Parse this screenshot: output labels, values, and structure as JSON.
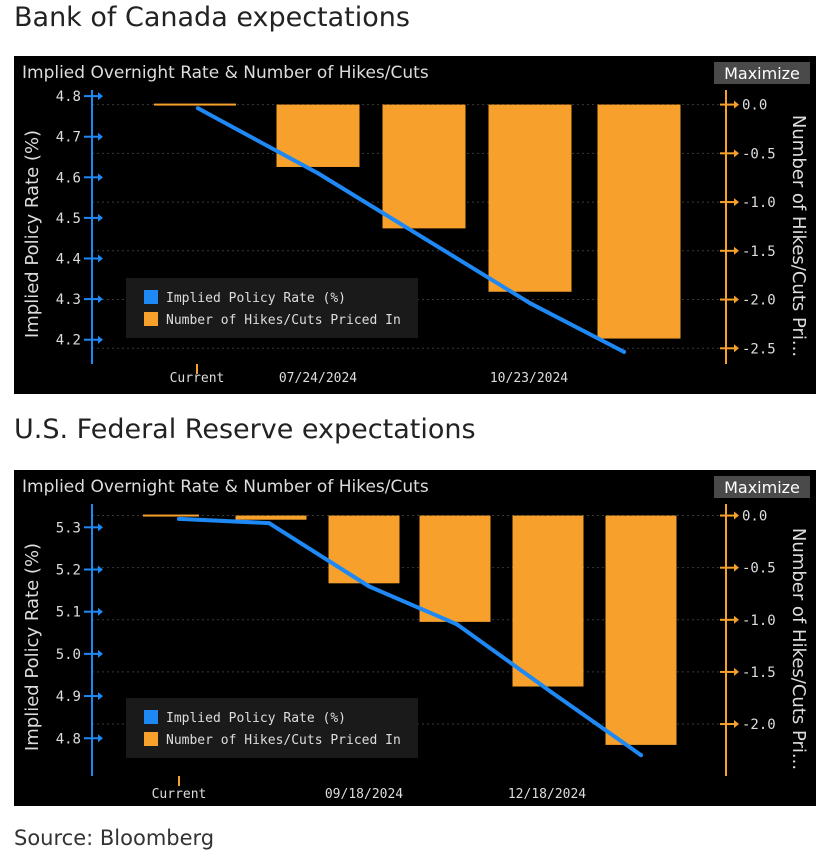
{
  "colors": {
    "rate_line": "#1E88F5",
    "bars": "#F7A02C",
    "panel_bg": "#000000",
    "axis_left": "#1E88F5",
    "axis_right": "#F7A02C",
    "text": "#DDDDDD",
    "button_bg": "#4A4A4A"
  },
  "source": "Source: Bloomberg",
  "chart_data": [
    {
      "section_title": "Bank of Canada expectations",
      "type": "bar+line",
      "title": "Implied Overnight Rate & Number of Hikes/Cuts",
      "maximize_label": "Maximize",
      "ylabel_left": "Implied Policy Rate (%)",
      "ylabel_right": "Number of Hikes/Cuts Pri...",
      "x_tick_labels": [
        "Current",
        "07/24/2024",
        "10/23/2024"
      ],
      "ylim_left": [
        4.15,
        4.82
      ],
      "yticks_left": [
        4.2,
        4.3,
        4.4,
        4.5,
        4.6,
        4.7,
        4.8
      ],
      "ylim_right": [
        -2.62,
        0.17
      ],
      "yticks_right": [
        0.0,
        -0.5,
        -1.0,
        -1.5,
        -2.0,
        -2.5
      ],
      "legend": {
        "placement": "bottom-left",
        "entries": [
          "Implied Policy Rate (%)",
          "Number of Hikes/Cuts Priced In"
        ]
      },
      "series": [
        {
          "name": "Implied Policy Rate (%)",
          "type": "line",
          "values": [
            4.77,
            4.61,
            4.45,
            4.29,
            4.17
          ]
        },
        {
          "name": "Number of Hikes/Cuts Priced In",
          "type": "bar",
          "values": [
            0.0,
            -0.64,
            -1.27,
            -1.92,
            -2.4
          ]
        }
      ]
    },
    {
      "section_title": "U.S. Federal Reserve expectations",
      "type": "bar+line",
      "title": "Implied Overnight Rate & Number of Hikes/Cuts",
      "maximize_label": "Maximize",
      "ylabel_left": "Implied Policy Rate (%)",
      "ylabel_right": "Number of Hikes/Cuts Pri...",
      "x_tick_labels": [
        "Current",
        "09/18/2024",
        "12/18/2024"
      ],
      "ylim_left": [
        4.72,
        5.36
      ],
      "yticks_left": [
        4.8,
        4.9,
        5.0,
        5.1,
        5.2,
        5.3
      ],
      "ylim_right": [
        -2.46,
        0.13
      ],
      "yticks_right": [
        0.0,
        -0.5,
        -1.0,
        -1.5,
        -2.0
      ],
      "legend": {
        "placement": "bottom-left",
        "entries": [
          "Implied Policy Rate (%)",
          "Number of Hikes/Cuts Priced In"
        ]
      },
      "series": [
        {
          "name": "Implied Policy Rate (%)",
          "type": "line",
          "values": [
            5.32,
            5.31,
            5.16,
            5.07,
            4.91,
            4.76
          ]
        },
        {
          "name": "Number of Hikes/Cuts Priced In",
          "type": "bar",
          "values": [
            0.0,
            -0.04,
            -0.65,
            -1.02,
            -1.64,
            -2.2
          ]
        }
      ]
    }
  ]
}
